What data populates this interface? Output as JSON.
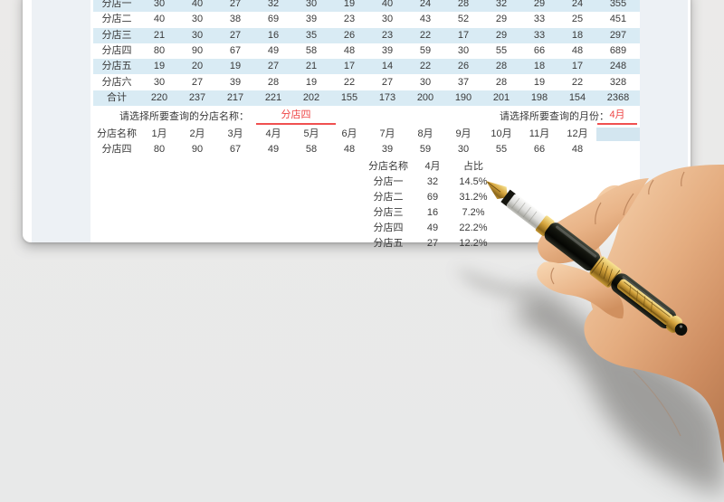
{
  "table_monthly": {
    "rows": [
      {
        "name": "分店一",
        "values": [
          30,
          40,
          27,
          32,
          30,
          19,
          40,
          24,
          28,
          32,
          29,
          24
        ],
        "total": 355
      },
      {
        "name": "分店二",
        "values": [
          40,
          30,
          38,
          69,
          39,
          23,
          30,
          43,
          52,
          29,
          33,
          25
        ],
        "total": 451
      },
      {
        "name": "分店三",
        "values": [
          21,
          30,
          27,
          16,
          35,
          26,
          23,
          22,
          17,
          29,
          33,
          18
        ],
        "total": 297
      },
      {
        "name": "分店四",
        "values": [
          80,
          90,
          67,
          49,
          58,
          48,
          39,
          59,
          30,
          55,
          66,
          48
        ],
        "total": 689
      },
      {
        "name": "分店五",
        "values": [
          19,
          20,
          19,
          27,
          21,
          17,
          14,
          22,
          26,
          28,
          18,
          17
        ],
        "total": 248
      },
      {
        "name": "分店六",
        "values": [
          30,
          27,
          39,
          28,
          19,
          22,
          27,
          30,
          37,
          28,
          19,
          22
        ],
        "total": 328
      },
      {
        "name": "合计",
        "values": [
          220,
          237,
          217,
          221,
          202,
          155,
          173,
          200,
          190,
          201,
          198,
          154
        ],
        "total": 2368
      }
    ]
  },
  "query_branch": {
    "label": "请选择所要查询的分店名称：",
    "value": "分店四"
  },
  "query_month": {
    "label": "请选择所要查询的月份：",
    "value": "4月"
  },
  "table_branch_detail": {
    "headers": [
      "分店名称",
      "1月",
      "2月",
      "3月",
      "4月",
      "5月",
      "6月",
      "7月",
      "8月",
      "9月",
      "10月",
      "11月",
      "12月"
    ],
    "row": {
      "name": "分店四",
      "values": [
        80,
        90,
        67,
        49,
        58,
        48,
        39,
        59,
        30,
        55,
        66,
        48
      ]
    }
  },
  "table_month_share": {
    "headers": [
      "分店名称",
      "4月",
      "占比"
    ],
    "rows": [
      {
        "name": "分店一",
        "value": 32,
        "share": "14.5%"
      },
      {
        "name": "分店二",
        "value": 69,
        "share": "31.2%"
      },
      {
        "name": "分店三",
        "value": 16,
        "share": "7.2%"
      },
      {
        "name": "分店四",
        "value": 49,
        "share": "22.2%"
      },
      {
        "name": "分店五",
        "value": 27,
        "share": "12.2%"
      }
    ]
  },
  "decor": {
    "photo": "right-hand-holding-black-gold-fountain-pen"
  },
  "colors": {
    "row_stripe": "#d9ebf4",
    "highlight_cell": "#d3e6f0",
    "accent_red": "#ee4545",
    "page_margin": "#edf1f5",
    "background": "#e9e9e9",
    "text": "#3a3a3a",
    "pen_gold": "#d4a33c",
    "pen_black": "#14160f"
  }
}
